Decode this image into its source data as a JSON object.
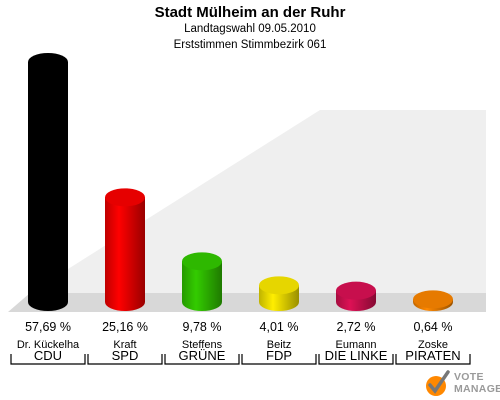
{
  "header": {
    "title": "Stadt Mülheim an der Ruhr",
    "subtitle1": "Landtagswahl 09.05.2010",
    "subtitle2": "Erststimmen Stimmbezirk 061"
  },
  "chart_data": {
    "type": "bar",
    "title": "Stadt Mülheim an der Ruhr",
    "subtitle": "Landtagswahl 09.05.2010 · Erststimmen Stimmbezirk 061",
    "categories": [
      "CDU",
      "SPD",
      "GRÜNE",
      "FDP",
      "DIE LINKE",
      "PIRATEN"
    ],
    "candidates": [
      "Dr. Kückelha",
      "Kraft",
      "Steffens",
      "Beitz",
      "Eumann",
      "Zoske"
    ],
    "values": [
      57.69,
      25.16,
      9.78,
      4.01,
      2.72,
      0.64
    ],
    "value_labels": [
      "57,69 %",
      "25,16 %",
      "9,78 %",
      "4,01 %",
      "2,72 %",
      "0,64 %"
    ],
    "colors": [
      "#000000",
      "#ff0000",
      "#33cc00",
      "#ffee00",
      "#dd1155",
      "#ff8800"
    ],
    "unit": "%",
    "grid": false,
    "legend": "none"
  },
  "logo": {
    "line1": "VOTE",
    "line2": "MANAGER"
  }
}
